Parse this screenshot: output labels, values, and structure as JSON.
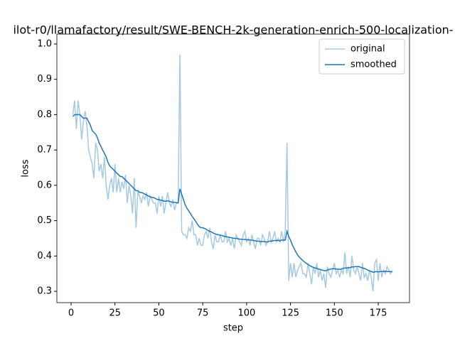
{
  "chart_data": {
    "type": "line",
    "title": "ilot-r0/llamafactory/result/SWE-BENCH-2k-generation-enrich-500-localization-",
    "x_label": "step",
    "y_label": "loss",
    "x": [
      1,
      2,
      3,
      4,
      5,
      6,
      7,
      8,
      9,
      10,
      11,
      12,
      13,
      14,
      15,
      16,
      17,
      18,
      19,
      20,
      21,
      22,
      23,
      24,
      25,
      26,
      27,
      28,
      29,
      30,
      31,
      32,
      33,
      34,
      35,
      36,
      37,
      38,
      39,
      40,
      41,
      42,
      43,
      44,
      45,
      46,
      47,
      48,
      49,
      50,
      51,
      52,
      53,
      54,
      55,
      56,
      57,
      58,
      59,
      60,
      61,
      62,
      63,
      64,
      65,
      66,
      67,
      68,
      69,
      70,
      71,
      72,
      73,
      74,
      75,
      76,
      77,
      78,
      79,
      80,
      81,
      82,
      83,
      84,
      85,
      86,
      87,
      88,
      89,
      90,
      91,
      92,
      93,
      94,
      95,
      96,
      97,
      98,
      99,
      100,
      101,
      102,
      103,
      104,
      105,
      106,
      107,
      108,
      109,
      110,
      111,
      112,
      113,
      114,
      115,
      116,
      117,
      118,
      119,
      120,
      121,
      122,
      123,
      124,
      125,
      126,
      127,
      128,
      129,
      130,
      131,
      132,
      133,
      134,
      135,
      136,
      137,
      138,
      139,
      140,
      141,
      142,
      143,
      144,
      145,
      146,
      147,
      148,
      149,
      150,
      151,
      152,
      153,
      154,
      155,
      156,
      157,
      158,
      159,
      160,
      161,
      162,
      163,
      164,
      165,
      166,
      167,
      168,
      169,
      170,
      171,
      172,
      173,
      174,
      175,
      176,
      177,
      178,
      179,
      180,
      181,
      182,
      183
    ],
    "series": [
      {
        "name": "original",
        "color": "#1f77b4",
        "alpha": 0.4,
        "values": [
          0.8,
          0.84,
          0.76,
          0.84,
          0.8,
          0.73,
          0.78,
          0.81,
          0.77,
          0.7,
          0.68,
          0.66,
          0.62,
          0.72,
          0.7,
          0.64,
          0.66,
          0.62,
          0.68,
          0.6,
          0.56,
          0.6,
          0.62,
          0.58,
          0.66,
          0.58,
          0.62,
          0.58,
          0.61,
          0.59,
          0.63,
          0.55,
          0.6,
          0.57,
          0.52,
          0.62,
          0.48,
          0.58,
          0.57,
          0.55,
          0.57,
          0.56,
          0.58,
          0.54,
          0.57,
          0.56,
          0.55,
          0.55,
          0.52,
          0.57,
          0.54,
          0.57,
          0.52,
          0.55,
          0.58,
          0.55,
          0.54,
          0.56,
          0.53,
          0.55,
          0.55,
          0.97,
          0.47,
          0.46,
          0.46,
          0.45,
          0.48,
          0.47,
          0.5,
          0.46,
          0.46,
          0.43,
          0.45,
          0.43,
          0.43,
          0.46,
          0.47,
          0.45,
          0.48,
          0.44,
          0.42,
          0.46,
          0.44,
          0.44,
          0.46,
          0.44,
          0.44,
          0.47,
          0.44,
          0.45,
          0.43,
          0.45,
          0.42,
          0.46,
          0.45,
          0.44,
          0.43,
          0.46,
          0.47,
          0.44,
          0.45,
          0.43,
          0.46,
          0.44,
          0.42,
          0.45,
          0.45,
          0.43,
          0.46,
          0.45,
          0.43,
          0.44,
          0.47,
          0.44,
          0.45,
          0.47,
          0.44,
          0.45,
          0.44,
          0.47,
          0.44,
          0.47,
          0.72,
          0.33,
          0.38,
          0.34,
          0.38,
          0.34,
          0.36,
          0.37,
          0.38,
          0.35,
          0.35,
          0.34,
          0.38,
          0.35,
          0.32,
          0.37,
          0.35,
          0.38,
          0.34,
          0.36,
          0.33,
          0.35,
          0.31,
          0.37,
          0.35,
          0.34,
          0.36,
          0.38,
          0.35,
          0.36,
          0.34,
          0.36,
          0.35,
          0.41,
          0.35,
          0.37,
          0.34,
          0.4,
          0.36,
          0.35,
          0.37,
          0.35,
          0.33,
          0.38,
          0.34,
          0.35,
          0.33,
          0.36,
          0.34,
          0.3,
          0.38,
          0.39,
          0.33,
          0.38,
          0.34,
          0.36,
          0.35,
          0.37,
          0.36,
          0.35,
          0.36
        ]
      },
      {
        "name": "smoothed",
        "color": "#1f77b4",
        "alpha": 1,
        "values": [
          0.795,
          0.8,
          0.8,
          0.8,
          0.8,
          0.795,
          0.79,
          0.79,
          0.79,
          0.78,
          0.77,
          0.755,
          0.75,
          0.745,
          0.735,
          0.72,
          0.71,
          0.7,
          0.69,
          0.68,
          0.665,
          0.655,
          0.65,
          0.645,
          0.64,
          0.635,
          0.63,
          0.625,
          0.625,
          0.62,
          0.615,
          0.61,
          0.605,
          0.6,
          0.595,
          0.59,
          0.585,
          0.585,
          0.58,
          0.58,
          0.578,
          0.575,
          0.573,
          0.57,
          0.568,
          0.566,
          0.565,
          0.563,
          0.56,
          0.56,
          0.558,
          0.557,
          0.555,
          0.555,
          0.556,
          0.555,
          0.553,
          0.552,
          0.552,
          0.551,
          0.55,
          0.59,
          0.575,
          0.56,
          0.545,
          0.535,
          0.528,
          0.52,
          0.512,
          0.505,
          0.498,
          0.49,
          0.483,
          0.48,
          0.48,
          0.478,
          0.476,
          0.472,
          0.47,
          0.468,
          0.465,
          0.463,
          0.461,
          0.46,
          0.459,
          0.458,
          0.456,
          0.455,
          0.454,
          0.453,
          0.452,
          0.451,
          0.45,
          0.45,
          0.449,
          0.448,
          0.447,
          0.447,
          0.447,
          0.446,
          0.446,
          0.445,
          0.445,
          0.444,
          0.443,
          0.442,
          0.442,
          0.441,
          0.441,
          0.441,
          0.44,
          0.44,
          0.442,
          0.442,
          0.443,
          0.444,
          0.444,
          0.444,
          0.443,
          0.445,
          0.445,
          0.445,
          0.47,
          0.455,
          0.445,
          0.432,
          0.422,
          0.412,
          0.403,
          0.397,
          0.392,
          0.387,
          0.383,
          0.379,
          0.376,
          0.373,
          0.37,
          0.368,
          0.366,
          0.365,
          0.363,
          0.362,
          0.36,
          0.359,
          0.358,
          0.36,
          0.362,
          0.363,
          0.364,
          0.364,
          0.363,
          0.363,
          0.362,
          0.363,
          0.365,
          0.366,
          0.366,
          0.367,
          0.367,
          0.369,
          0.369,
          0.37,
          0.37,
          0.37,
          0.368,
          0.366,
          0.365,
          0.363,
          0.36,
          0.358,
          0.356,
          0.354,
          0.355,
          0.356,
          0.355,
          0.356,
          0.356,
          0.356,
          0.357,
          0.356,
          0.356,
          0.356,
          0.355
        ]
      }
    ],
    "xlim": [
      -8.1,
      192.8
    ],
    "ylim": [
      0.268,
      1.028
    ],
    "xticks": [
      0,
      25,
      50,
      75,
      100,
      125,
      150,
      175
    ],
    "yticks": [
      0.3,
      0.4,
      0.5,
      0.6,
      0.7,
      0.8,
      0.9,
      {
        "value": 1,
        "label": "1.0"
      }
    ],
    "legend": "upper right"
  }
}
